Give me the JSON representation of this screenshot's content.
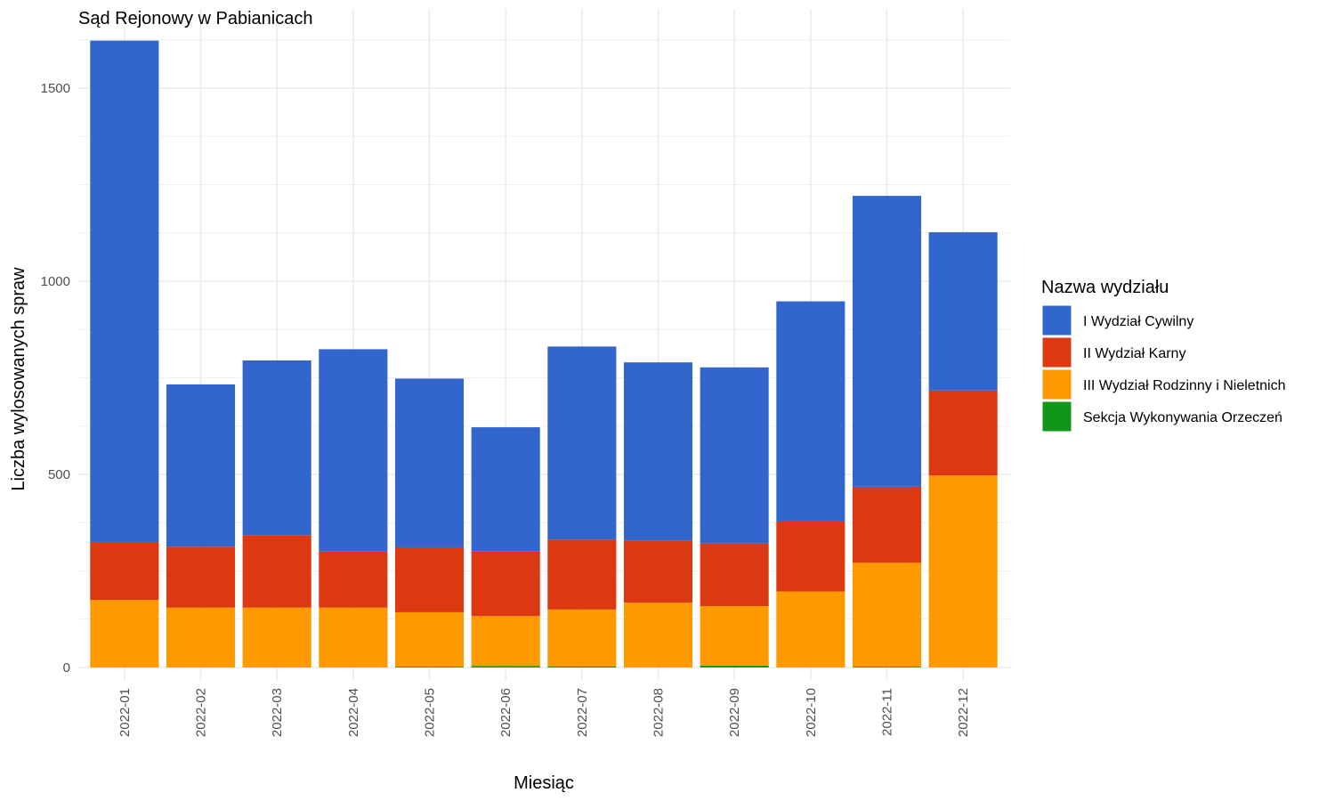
{
  "chart_data": {
    "type": "bar",
    "stacked": true,
    "title": "Sąd Rejonowy w Pabianicach",
    "xlabel": "Miesiąc",
    "ylabel": "Liczba wylosowanych spraw",
    "ylim": [
      0,
      1650
    ],
    "yticks": [
      0,
      500,
      1000,
      1500
    ],
    "grid": true,
    "legend": {
      "title": "Nazwa wydziału",
      "position": "right"
    },
    "categories": [
      "2022-01",
      "2022-02",
      "2022-03",
      "2022-04",
      "2022-05",
      "2022-06",
      "2022-07",
      "2022-08",
      "2022-09",
      "2022-10",
      "2022-11",
      "2022-12"
    ],
    "series": [
      {
        "name": "Sekcja Wykonywania Orzeczeń",
        "color": "#109618",
        "values": [
          0,
          0,
          0,
          0,
          2,
          4,
          3,
          0,
          5,
          0,
          2,
          0
        ]
      },
      {
        "name": "III Wydział Rodzinny i Nieletnich",
        "color": "#FF9900",
        "values": [
          175,
          155,
          155,
          155,
          141,
          129,
          147,
          168,
          154,
          197,
          269,
          497
        ]
      },
      {
        "name": "II Wydział Karny",
        "color": "#DC3912",
        "values": [
          150,
          158,
          188,
          145,
          168,
          167,
          181,
          160,
          162,
          181,
          197,
          220
        ]
      },
      {
        "name": "I Wydział Cywilny",
        "color": "#3366CC",
        "values": [
          1298,
          420,
          452,
          524,
          437,
          322,
          500,
          462,
          456,
          570,
          753,
          410
        ]
      }
    ],
    "legend_order": [
      "I Wydział Cywilny",
      "II Wydział Karny",
      "III Wydział Rodzinny i Nieletnich",
      "Sekcja Wykonywania Orzeczeń"
    ]
  }
}
